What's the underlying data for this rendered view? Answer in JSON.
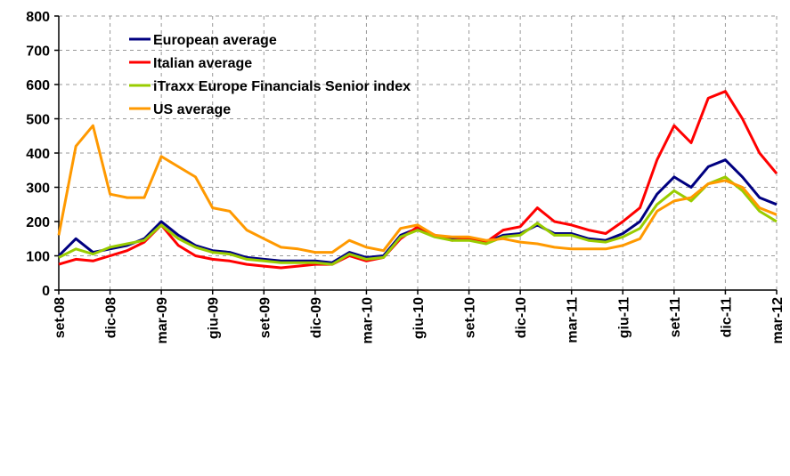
{
  "chart_data": {
    "type": "line",
    "categories": [
      "set-08",
      null,
      null,
      "dic-08",
      null,
      null,
      "mar-09",
      null,
      null,
      "giu-09",
      null,
      null,
      "set-09",
      null,
      null,
      "dic-09",
      null,
      null,
      "mar-10",
      null,
      null,
      "giu-10",
      null,
      null,
      "set-10",
      null,
      null,
      "dic-10",
      null,
      null,
      "mar-11",
      null,
      null,
      "giu-11",
      null,
      null,
      "set-11",
      null,
      null,
      "dic-11",
      null,
      null,
      "mar-12"
    ],
    "series": [
      {
        "name": "European average",
        "color": "#000080",
        "values": [
          100,
          150,
          110,
          120,
          130,
          150,
          200,
          160,
          130,
          115,
          110,
          95,
          90,
          85,
          85,
          85,
          80,
          110,
          95,
          100,
          160,
          180,
          160,
          150,
          150,
          140,
          160,
          165,
          190,
          165,
          165,
          150,
          145,
          165,
          200,
          280,
          330,
          300,
          360,
          380,
          330,
          270,
          250
        ]
      },
      {
        "name": "Italian average",
        "color": "#ff0000",
        "values": [
          75,
          90,
          85,
          100,
          115,
          140,
          190,
          130,
          100,
          90,
          85,
          75,
          70,
          65,
          70,
          75,
          75,
          100,
          85,
          95,
          150,
          185,
          160,
          145,
          150,
          140,
          175,
          185,
          240,
          200,
          190,
          175,
          165,
          200,
          240,
          380,
          480,
          430,
          560,
          580,
          500,
          400,
          340
        ]
      },
      {
        "name": "iTraxx Europe Financials Senior index",
        "color": "#99cc00",
        "values": [
          95,
          120,
          105,
          125,
          135,
          145,
          190,
          150,
          125,
          110,
          105,
          90,
          85,
          80,
          80,
          80,
          75,
          105,
          90,
          95,
          155,
          175,
          155,
          145,
          145,
          135,
          155,
          160,
          195,
          160,
          160,
          145,
          140,
          155,
          180,
          250,
          290,
          260,
          310,
          330,
          290,
          230,
          200
        ]
      },
      {
        "name": "US average",
        "color": "#ff9900",
        "values": [
          160,
          420,
          480,
          280,
          270,
          270,
          390,
          360,
          330,
          240,
          230,
          175,
          150,
          125,
          120,
          110,
          110,
          145,
          125,
          115,
          180,
          190,
          160,
          155,
          155,
          145,
          150,
          140,
          135,
          125,
          120,
          120,
          120,
          130,
          150,
          230,
          260,
          270,
          310,
          320,
          300,
          240,
          220
        ]
      }
    ],
    "ylim": [
      0,
      800
    ],
    "yticks": [
      0,
      100,
      200,
      300,
      400,
      500,
      600,
      700,
      800
    ],
    "grid": true,
    "legend": "top-left"
  }
}
